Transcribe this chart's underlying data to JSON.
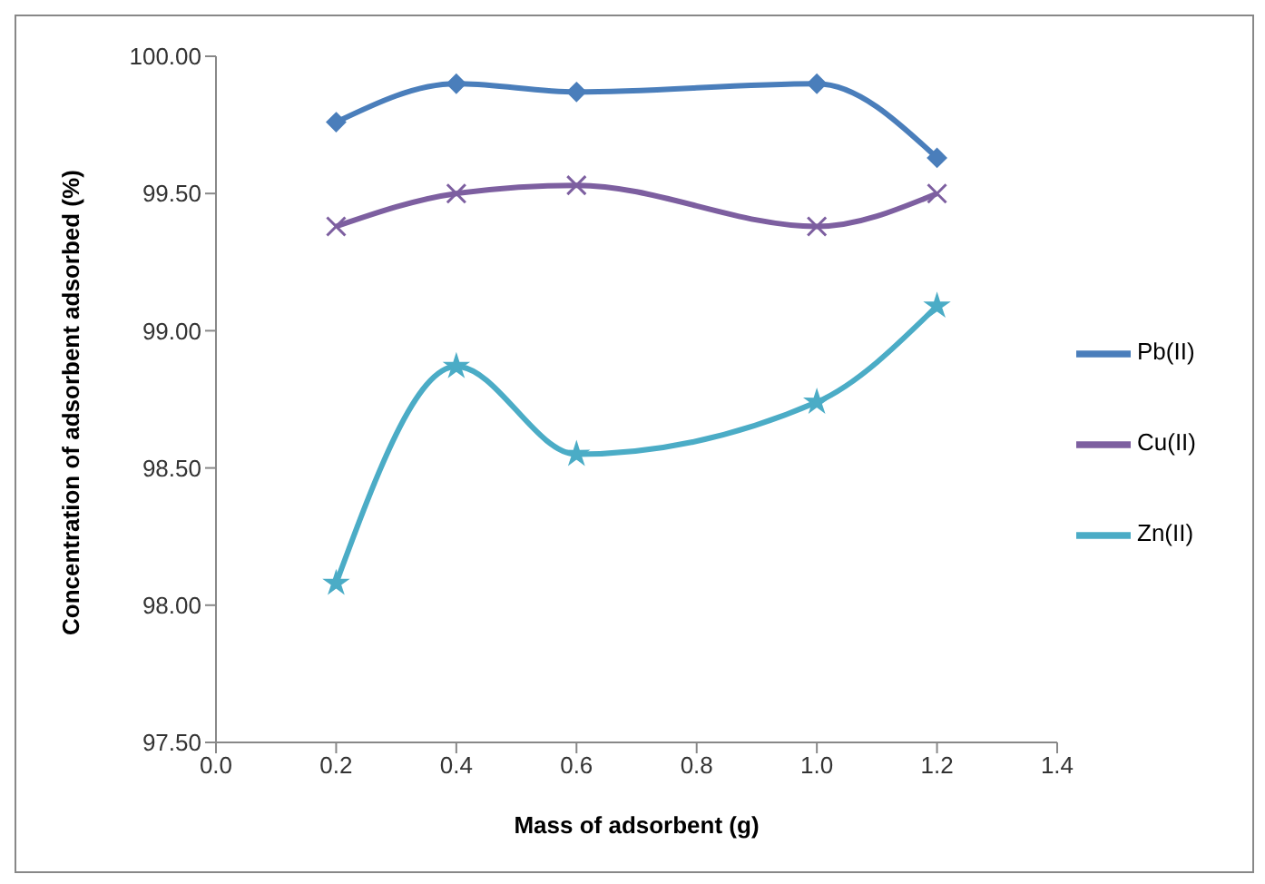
{
  "chart_data": {
    "type": "line",
    "xlabel": "Mass of adsorbent (g)",
    "ylabel": "Concentration of adsorbent adsorbed (%)",
    "x": [
      0.2,
      0.4,
      0.6,
      1.0,
      1.2
    ],
    "series": [
      {
        "name": "Pb(II)",
        "color": "#4a7ebb",
        "marker": "diamond",
        "values": [
          99.76,
          99.9,
          99.87,
          99.9,
          99.63
        ]
      },
      {
        "name": "Cu(II)",
        "color": "#7d5fa0",
        "marker": "cross",
        "values": [
          99.38,
          99.5,
          99.53,
          99.38,
          99.5
        ]
      },
      {
        "name": "Zn(II)",
        "color": "#4bacc6",
        "marker": "star",
        "values": [
          98.08,
          98.87,
          98.55,
          98.74,
          99.09
        ]
      }
    ],
    "xlim": [
      0,
      1.4
    ],
    "xticks": [
      {
        "value": 0,
        "label": "0.0"
      },
      {
        "value": 0.2,
        "label": "0.2"
      },
      {
        "value": 0.4,
        "label": "0.4"
      },
      {
        "value": 0.6,
        "label": "0.6"
      },
      {
        "value": 0.8,
        "label": "0.8"
      },
      {
        "value": 1.0,
        "label": "1.0"
      },
      {
        "value": 1.2,
        "label": "1.2"
      },
      {
        "value": 1.4,
        "label": "1.4"
      }
    ],
    "ylim": [
      97.5,
      100
    ],
    "yticks": [
      {
        "value": 97.5,
        "label": "97.50"
      },
      {
        "value": 98,
        "label": "98.00"
      },
      {
        "value": 98.5,
        "label": "98.50"
      },
      {
        "value": 99,
        "label": "99.00"
      },
      {
        "value": 99.5,
        "label": "99.50"
      },
      {
        "value": 100,
        "label": "100.00"
      }
    ],
    "grid": false,
    "legend": "right",
    "line_style": "solid"
  }
}
